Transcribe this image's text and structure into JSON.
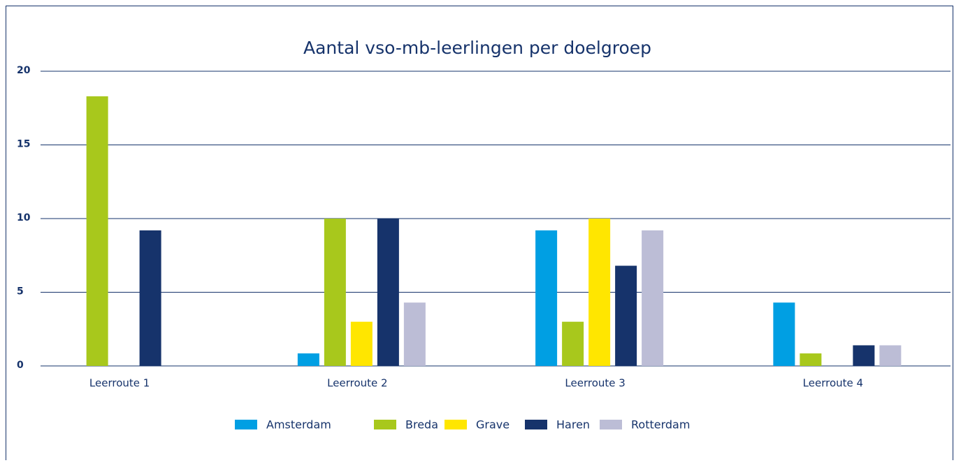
{
  "chart_data": {
    "type": "bar",
    "title": "Aantal vso-mb-leerlingen per doelgroep",
    "categories": [
      "Leerroute 1",
      "Leerroute 2",
      "Leerroute 3",
      "Leerroute 4"
    ],
    "series": [
      {
        "name": "Amsterdam",
        "color": "#009fe3",
        "values": [
          0,
          0.85,
          9.2,
          4.3
        ]
      },
      {
        "name": "Breda",
        "color": "#a8c81c",
        "values": [
          18.3,
          10,
          3.0,
          0.85
        ]
      },
      {
        "name": "Grave",
        "color": "#ffe600",
        "values": [
          0,
          3.0,
          10,
          0
        ]
      },
      {
        "name": "Haren",
        "color": "#16336b",
        "values": [
          9.2,
          10,
          6.8,
          1.4
        ]
      },
      {
        "name": "Rotterdam",
        "color": "#bcbdd6",
        "values": [
          0,
          4.3,
          9.2,
          1.4
        ]
      }
    ],
    "ylim": [
      0,
      20
    ],
    "yticks": [
      0,
      5,
      10,
      15,
      20
    ],
    "grid": true,
    "legend": "bottom"
  }
}
